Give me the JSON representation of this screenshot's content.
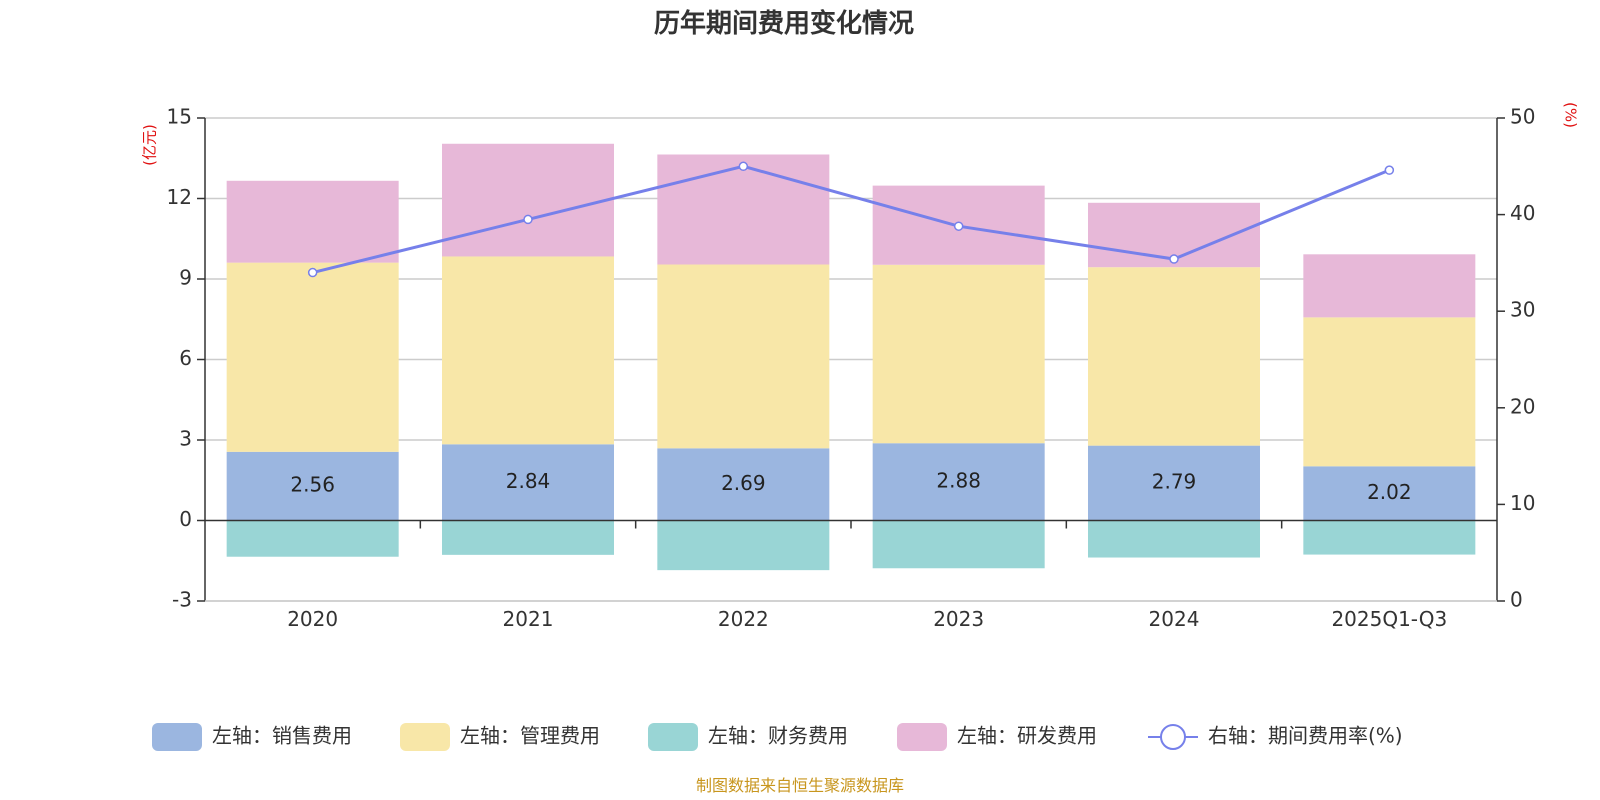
{
  "chart_data": {
    "type": "bar",
    "stacked": true,
    "title": "历年期间费用变化情况",
    "categories": [
      "2020",
      "2021",
      "2022",
      "2023",
      "2024",
      "2025Q1-Q3"
    ],
    "left_axis": {
      "unit": "(亿元)",
      "min": -3,
      "max": 15,
      "ticks": [
        -3,
        0,
        3,
        6,
        9,
        12,
        15
      ]
    },
    "right_axis": {
      "unit": "(%)",
      "min": 0,
      "max": 50,
      "ticks": [
        0,
        10,
        20,
        30,
        40,
        50
      ]
    },
    "series": [
      {
        "name": "销售费用",
        "legend": "左轴：销售费用",
        "axis": "left",
        "type": "bar",
        "color": "#9bb6e0",
        "values": [
          2.56,
          2.84,
          2.69,
          2.88,
          2.79,
          2.02
        ],
        "labels": [
          "2.56",
          "2.84",
          "2.69",
          "2.88",
          "2.79",
          "2.02"
        ]
      },
      {
        "name": "管理费用",
        "legend": "左轴：管理费用",
        "axis": "left",
        "type": "bar",
        "color": "#f8e7a8",
        "values": [
          7.05,
          7.0,
          6.85,
          6.65,
          6.65,
          5.55
        ]
      },
      {
        "name": "财务费用",
        "legend": "左轴：财务费用",
        "axis": "left",
        "type": "bar",
        "color": "#99d5d5",
        "values": [
          -1.35,
          -1.28,
          -1.85,
          -1.78,
          -1.38,
          -1.27
        ]
      },
      {
        "name": "研发费用",
        "legend": "左轴：研发费用",
        "axis": "left",
        "type": "bar",
        "color": "#e7b8d8",
        "values": [
          3.05,
          4.2,
          4.1,
          2.95,
          2.4,
          2.35
        ]
      },
      {
        "name": "期间费用率(%)",
        "legend": "右轴：期间费用率(%)",
        "axis": "right",
        "type": "line",
        "color": "#7680ea",
        "values": [
          34.0,
          39.5,
          45.0,
          38.8,
          35.4,
          44.6
        ]
      }
    ],
    "legend_position": "bottom",
    "grid": true
  },
  "footer": {
    "source": "制图数据来自恒生聚源数据库"
  }
}
